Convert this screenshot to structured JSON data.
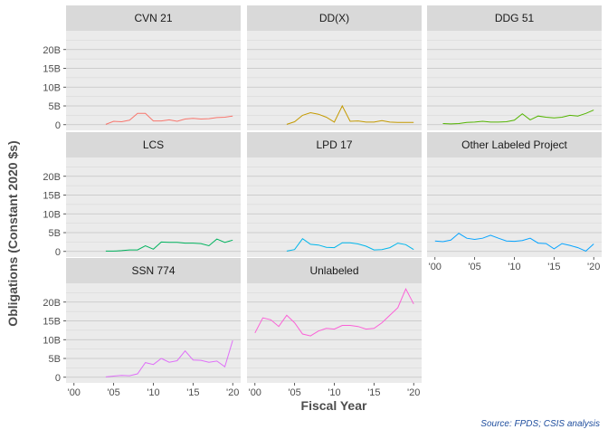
{
  "chart_data": {
    "type": "line",
    "layout": "facet-wrap",
    "ylabel": "Obligations (Constant 2020 $s)",
    "xlabel": "Fiscal Year",
    "caption": "Source: FPDS; CSIS analysis",
    "grid": true,
    "xlim": [
      1999,
      2021
    ],
    "ylim": [
      -1.5,
      25
    ],
    "x_ticks": [
      2000,
      2005,
      2010,
      2015,
      2020
    ],
    "x_tick_labels": [
      "'00",
      "'05",
      "'10",
      "'15",
      "'20"
    ],
    "y_ticks": [
      0,
      5,
      10,
      15,
      20
    ],
    "y_tick_labels": [
      "0",
      "5B",
      "10B",
      "15B",
      "20B"
    ],
    "x_axis_panels": [
      "Other Labeled Project",
      "SSN 774",
      "Unlabeled"
    ],
    "facets": [
      {
        "name": "CVN 21",
        "color": "#F8766D",
        "x": [
          2004,
          2005,
          2006,
          2007,
          2008,
          2009,
          2010,
          2011,
          2012,
          2013,
          2014,
          2015,
          2016,
          2017,
          2018,
          2019,
          2020
        ],
        "y": [
          0.1,
          0.9,
          0.8,
          1.2,
          3.0,
          3.0,
          1.0,
          1.0,
          1.3,
          0.9,
          1.5,
          1.7,
          1.5,
          1.6,
          1.9,
          2.0,
          2.3
        ]
      },
      {
        "name": "DD(X)",
        "color": "#C49A00",
        "x": [
          2004,
          2005,
          2006,
          2007,
          2008,
          2009,
          2010,
          2011,
          2012,
          2013,
          2014,
          2015,
          2016,
          2017,
          2018,
          2019,
          2020
        ],
        "y": [
          0.1,
          0.8,
          2.5,
          3.2,
          2.8,
          2.0,
          0.7,
          5.0,
          0.9,
          1.0,
          0.7,
          0.7,
          1.1,
          0.7,
          0.6,
          0.6,
          0.6
        ]
      },
      {
        "name": "DDG 51",
        "color": "#53B400",
        "x": [
          2001,
          2002,
          2003,
          2004,
          2005,
          2006,
          2007,
          2008,
          2009,
          2010,
          2011,
          2012,
          2013,
          2014,
          2015,
          2016,
          2017,
          2018,
          2019,
          2020
        ],
        "y": [
          0.3,
          0.2,
          0.3,
          0.6,
          0.7,
          0.9,
          0.7,
          0.7,
          0.8,
          1.2,
          2.9,
          1.3,
          2.3,
          2.0,
          1.8,
          2.0,
          2.5,
          2.3,
          3.0,
          3.9
        ]
      },
      {
        "name": "LCS",
        "color": "#00B35E",
        "x": [
          2004,
          2005,
          2006,
          2007,
          2008,
          2009,
          2010,
          2011,
          2012,
          2013,
          2014,
          2015,
          2016,
          2017,
          2018,
          2019,
          2020
        ],
        "y": [
          0.1,
          0.1,
          0.2,
          0.4,
          0.4,
          1.5,
          0.6,
          2.5,
          2.4,
          2.4,
          2.2,
          2.2,
          2.1,
          1.5,
          3.3,
          2.4,
          3.0
        ]
      },
      {
        "name": "LPD 17",
        "color": "#00B6EB",
        "x": [
          2004,
          2005,
          2006,
          2007,
          2008,
          2009,
          2010,
          2011,
          2012,
          2013,
          2014,
          2015,
          2016,
          2017,
          2018,
          2019,
          2020
        ],
        "y": [
          0.1,
          0.5,
          3.4,
          1.9,
          1.7,
          1.1,
          1.0,
          2.3,
          2.3,
          2.0,
          1.4,
          0.4,
          0.5,
          1.0,
          2.2,
          1.8,
          0.5
        ]
      },
      {
        "name": "Other Labeled Project",
        "color": "#06A4FF",
        "x": [
          2000,
          2001,
          2002,
          2003,
          2004,
          2005,
          2006,
          2007,
          2008,
          2009,
          2010,
          2011,
          2012,
          2013,
          2014,
          2015,
          2016,
          2017,
          2018,
          2019,
          2020
        ],
        "y": [
          2.8,
          2.6,
          3.0,
          4.8,
          3.5,
          3.2,
          3.5,
          4.3,
          3.5,
          2.8,
          2.7,
          2.9,
          3.5,
          2.2,
          2.1,
          0.7,
          2.1,
          1.6,
          1.0,
          0.1,
          2.0
        ]
      },
      {
        "name": "SSN 774",
        "color": "#DF70F8",
        "x": [
          2004,
          2005,
          2006,
          2007,
          2008,
          2009,
          2010,
          2011,
          2012,
          2013,
          2014,
          2015,
          2016,
          2017,
          2018,
          2019,
          2020
        ],
        "y": [
          0.1,
          0.3,
          0.5,
          0.4,
          0.9,
          3.9,
          3.4,
          5.0,
          4.0,
          4.4,
          7.0,
          4.6,
          4.5,
          4.0,
          4.3,
          2.8,
          9.8
        ]
      },
      {
        "name": "Unlabeled",
        "color": "#FB61D7",
        "x": [
          2000,
          2001,
          2002,
          2003,
          2004,
          2005,
          2006,
          2007,
          2008,
          2009,
          2010,
          2011,
          2012,
          2013,
          2014,
          2015,
          2016,
          2017,
          2018,
          2019,
          2020
        ],
        "y": [
          11.8,
          15.8,
          15.3,
          13.5,
          16.5,
          14.5,
          11.5,
          11.0,
          12.3,
          13.0,
          12.8,
          13.8,
          13.8,
          13.5,
          12.8,
          13.0,
          14.5,
          16.5,
          18.5,
          23.5,
          19.5
        ]
      }
    ]
  }
}
